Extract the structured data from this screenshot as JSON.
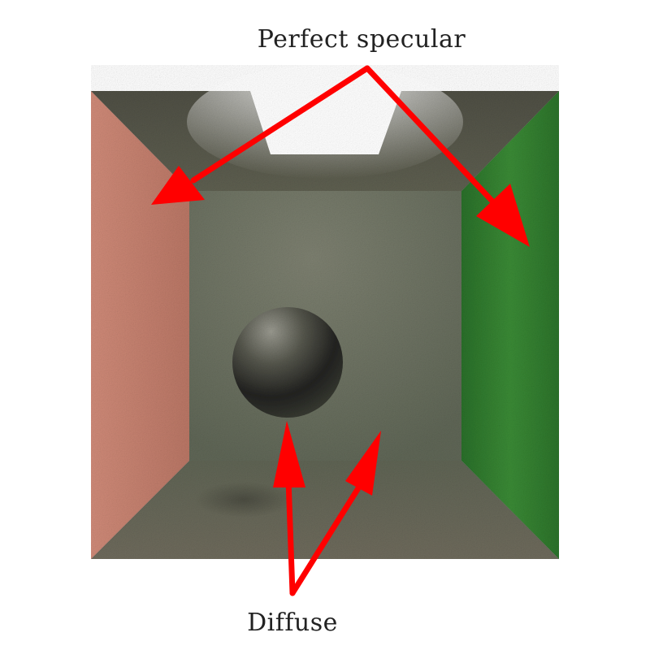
{
  "labels": {
    "specular": "Perfect specular",
    "diffuse": "Diffuse"
  },
  "scene": {
    "description_colors": {
      "left_wall": "#c98272",
      "right_wall": "#2f7a2c",
      "back_wall": "#6f7462",
      "floor": "#6d6b5c",
      "ceiling": "#5b5a4c",
      "light": "#ffffff",
      "sphere": "#3b3b34"
    },
    "arrow_color": "#ff0000"
  }
}
